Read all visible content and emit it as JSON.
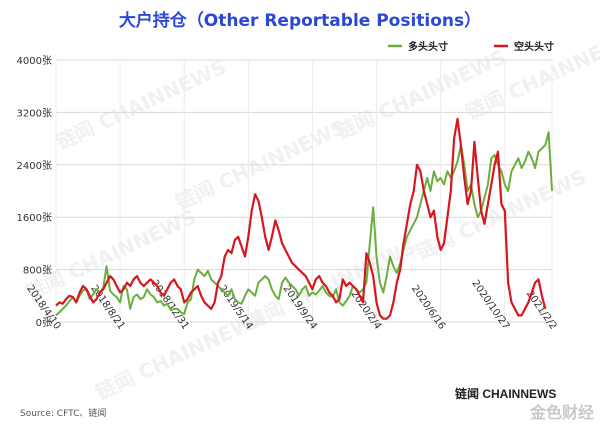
{
  "title": "大户持仓（Other Reportable Positions）",
  "source": "Source: CFTC、链闻",
  "brand": "链闻 CHAINNEWS",
  "brand_secondary": "金色财经",
  "watermark": "链闻 CHAINNEWS",
  "colors": {
    "long": "#6aaf3d",
    "short": "#d6171f",
    "title": "#2b47d6",
    "grid": "#d9d9d9"
  },
  "chart_data": {
    "type": "line",
    "ylim": [
      0,
      4000
    ],
    "y_ticks": [
      "0张",
      "800张",
      "1600张",
      "2400张",
      "3200张",
      "4000张"
    ],
    "y_tick_values": [
      0,
      800,
      1600,
      2400,
      3200,
      4000
    ],
    "x_ticks": [
      "2018/4/10",
      "2018/8/21",
      "2018/12/31",
      "2019/5/14",
      "2019/9/24",
      "2020/2/4",
      "2020/6/16",
      "2020/10/27",
      "2021/2/2"
    ],
    "x_tick_positions": [
      0,
      19,
      38,
      57,
      76,
      95,
      114,
      133,
      147
    ],
    "x_count": 148,
    "legend_position": "top-right",
    "grid": true,
    "series": [
      {
        "name": "多头头寸",
        "color": "#6aaf3d",
        "values": [
          100,
          150,
          200,
          250,
          320,
          380,
          300,
          400,
          480,
          500,
          350,
          420,
          500,
          450,
          520,
          850,
          480,
          420,
          380,
          300,
          550,
          500,
          200,
          380,
          420,
          350,
          380,
          500,
          420,
          380,
          300,
          320,
          250,
          280,
          180,
          200,
          200,
          150,
          120,
          300,
          350,
          650,
          800,
          750,
          700,
          780,
          650,
          600,
          550,
          500,
          450,
          400,
          500,
          350,
          300,
          280,
          400,
          500,
          450,
          400,
          600,
          650,
          700,
          650,
          500,
          400,
          350,
          600,
          680,
          600,
          550,
          500,
          400,
          500,
          550,
          400,
          450,
          420,
          480,
          550,
          450,
          400,
          380,
          500,
          300,
          250,
          320,
          400,
          550,
          500,
          450,
          500,
          600,
          1200,
          1750,
          1000,
          600,
          450,
          700,
          1000,
          850,
          750,
          900,
          1100,
          1300,
          1400,
          1500,
          1600,
          1800,
          2000,
          2200,
          2000,
          2300,
          2150,
          2200,
          2100,
          2300,
          2200,
          2300,
          2450,
          2700,
          2400,
          2000,
          2100,
          1800,
          1600,
          1700,
          1900,
          2100,
          2500,
          2550,
          2400,
          2300,
          2100,
          2000,
          2300,
          2400,
          2500,
          2350,
          2450,
          2600,
          2500,
          2350,
          2600,
          2650,
          2700,
          2900,
          2000
        ]
      },
      {
        "name": "空头头寸",
        "color": "#d6171f",
        "values": [
          250,
          300,
          280,
          350,
          400,
          380,
          300,
          450,
          550,
          500,
          400,
          300,
          350,
          450,
          500,
          600,
          700,
          650,
          550,
          450,
          500,
          600,
          550,
          650,
          700,
          600,
          550,
          600,
          650,
          600,
          550,
          450,
          400,
          500,
          600,
          650,
          550,
          500,
          300,
          350,
          450,
          500,
          550,
          400,
          300,
          250,
          200,
          300,
          600,
          700,
          1000,
          1100,
          1050,
          1250,
          1300,
          1150,
          1000,
          1300,
          1700,
          1950,
          1850,
          1600,
          1300,
          1100,
          1300,
          1550,
          1400,
          1200,
          1100,
          1000,
          900,
          850,
          800,
          750,
          700,
          600,
          500,
          650,
          700,
          600,
          550,
          450,
          400,
          300,
          350,
          650,
          550,
          600,
          550,
          500,
          400,
          300,
          1050,
          900,
          700,
          300,
          100,
          50,
          50,
          100,
          300,
          600,
          800,
          1200,
          1500,
          1800,
          2000,
          2400,
          2300,
          2000,
          1800,
          1600,
          1700,
          1300,
          1100,
          1200,
          1600,
          2000,
          2800,
          3100,
          2700,
          2200,
          1800,
          2000,
          2750,
          2200,
          1700,
          1500,
          1800,
          2100,
          2400,
          2600,
          1800,
          1700,
          600,
          300,
          200,
          100,
          100,
          200,
          300,
          450,
          600,
          650,
          400,
          200
        ]
      }
    ]
  }
}
